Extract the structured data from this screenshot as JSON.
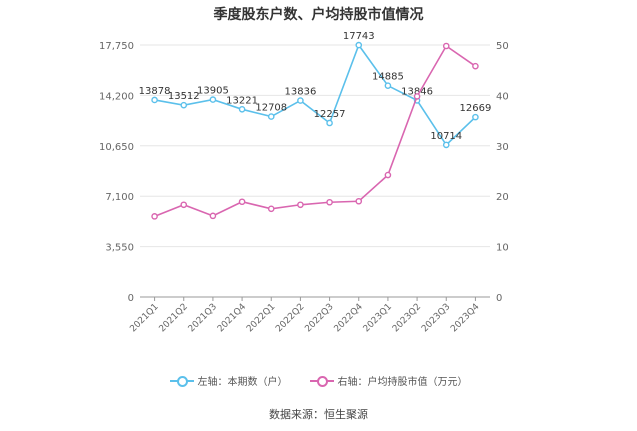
{
  "chart_data": {
    "type": "line",
    "title": "季度股东户数、户均持股市值情况",
    "categories": [
      "2021Q1",
      "2021Q2",
      "2021Q3",
      "2021Q4",
      "2022Q1",
      "2022Q2",
      "2022Q3",
      "2022Q4",
      "2023Q1",
      "2023Q2",
      "2023Q3",
      "2023Q4"
    ],
    "series": [
      {
        "name": "左轴：本期数（户）",
        "axis": "left",
        "color": "#5bc0eb",
        "values": [
          13878,
          13512,
          13905,
          13221,
          12708,
          13836,
          12257,
          17743,
          14885,
          13846,
          10714,
          12669
        ],
        "data_labels": [
          "13878",
          "13512",
          "13905",
          "13221",
          "12708",
          "13836",
          "12257",
          "17743",
          "14885",
          "13846",
          "10714",
          "12669"
        ]
      },
      {
        "name": "右轴：户均持股市值（万元）",
        "axis": "right",
        "color": "#d966b0",
        "values": [
          16.0,
          18.3,
          16.1,
          18.9,
          17.5,
          18.3,
          18.8,
          19.0,
          24.2,
          39.8,
          49.8,
          45.8
        ]
      }
    ],
    "y_left": {
      "min": 0,
      "max": 17750,
      "ticks": [
        0,
        3550,
        7100,
        10650,
        14200,
        17750
      ],
      "tick_labels": [
        "0",
        "3,550",
        "7,100",
        "10,650",
        "14,200",
        "17,750"
      ]
    },
    "y_right": {
      "min": 0,
      "max": 50,
      "ticks": [
        0,
        10,
        20,
        30,
        40,
        50
      ],
      "tick_labels": [
        "0",
        "10",
        "20",
        "30",
        "40",
        "50"
      ]
    },
    "grid": true,
    "legend_position": "bottom"
  },
  "source": "数据来源：恒生聚源"
}
